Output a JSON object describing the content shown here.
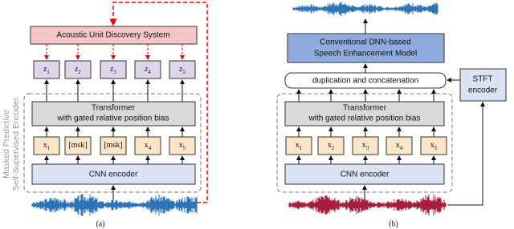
{
  "panel_a": {
    "discovery": "Acoustic Unit Discovery System",
    "units": [
      {
        "base": "z",
        "sub": "1"
      },
      {
        "base": "z",
        "sub": "2"
      },
      {
        "base": "z",
        "sub": "3"
      },
      {
        "base": "z",
        "sub": "4"
      },
      {
        "base": "z",
        "sub": "5"
      }
    ],
    "transformer": [
      "Transformer",
      "with gated relative position bias"
    ],
    "inputs": [
      {
        "base": "x",
        "sub": "1"
      },
      {
        "base": "[msk]",
        "sub": ""
      },
      {
        "base": "[msk]",
        "sub": ""
      },
      {
        "base": "x",
        "sub": "4"
      },
      {
        "base": "x",
        "sub": "5"
      }
    ],
    "cnn": "CNN encoder",
    "encoder_label": [
      "Masked Predictive",
      "Self-Supervised Encoder"
    ],
    "caption": "(a)"
  },
  "panel_b": {
    "enhancement": [
      "Conventional DNN-based",
      "Speech Enhancement Model"
    ],
    "concat": "duplication and concatenation",
    "stft": [
      "STFT",
      "encoder"
    ],
    "transformer": [
      "Transformer",
      "with gated relative position bias"
    ],
    "inputs": [
      {
        "base": "x",
        "sub": "1"
      },
      {
        "base": "x",
        "sub": "2"
      },
      {
        "base": "x",
        "sub": "3"
      },
      {
        "base": "x",
        "sub": "4"
      },
      {
        "base": "x",
        "sub": "5"
      }
    ],
    "cnn": "CNN encoder",
    "caption": "(b)"
  }
}
